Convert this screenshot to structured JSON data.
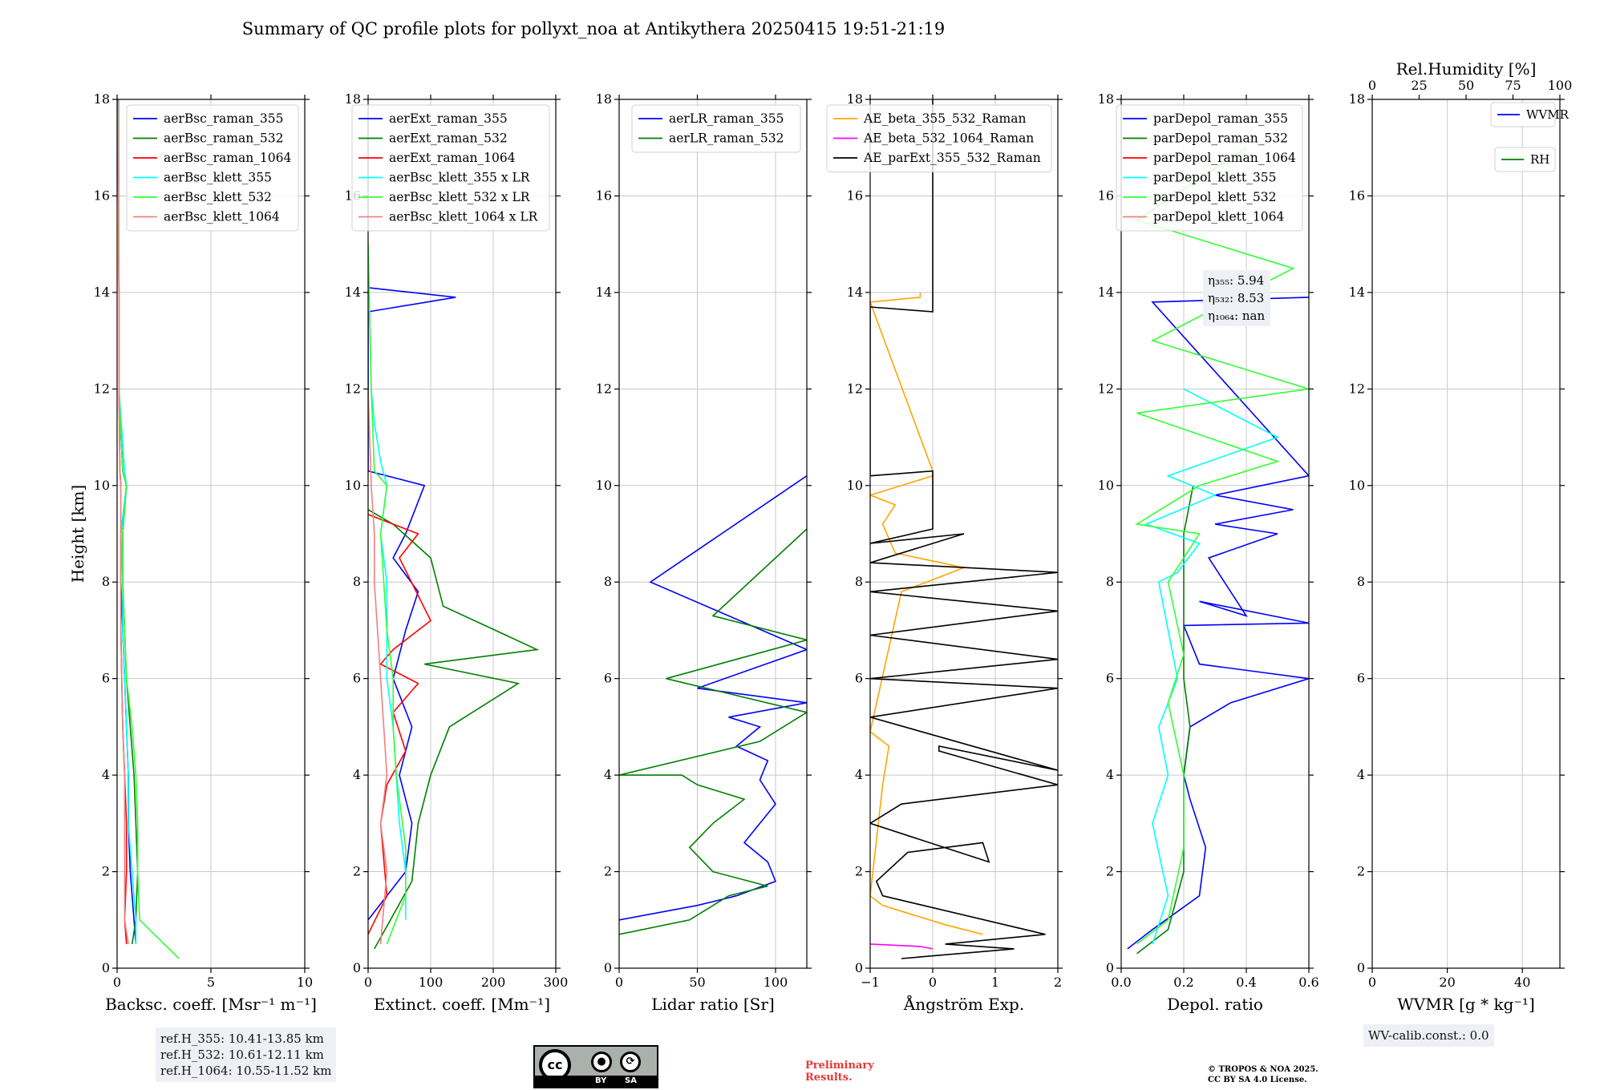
{
  "title": "Summary of QC profile plots for pollyxt_noa at Antikythera 20250415 19:51-21:19",
  "chart_data": [
    {
      "type": "line",
      "id": "bsc",
      "xlabel": "Backsc. coeff. [Msr⁻¹ m⁻¹]",
      "ylabel": "Height [km]",
      "xlim": [
        0,
        10
      ],
      "ylim": [
        0,
        18
      ],
      "xticks": [
        0,
        5,
        10
      ],
      "yticks": [
        0,
        2,
        4,
        6,
        8,
        10,
        12,
        14,
        16,
        18
      ],
      "grid": true,
      "legend": "top-right",
      "series": [
        {
          "name": "aerBsc_raman_355",
          "color": "#0000ff",
          "x": [
            1.0,
            0.9,
            0.7,
            0.6,
            0.6,
            0.5,
            0.4,
            0.3,
            0.2,
            0.2,
            0.5,
            0.3,
            0.1,
            0.1,
            0.05
          ],
          "y": [
            0.5,
            1.0,
            2.0,
            3.0,
            4.0,
            5.0,
            6.0,
            7.0,
            8.0,
            9.0,
            10.0,
            10.3,
            12.0,
            14.0,
            18.0
          ]
        },
        {
          "name": "aerBsc_raman_532",
          "color": "#008000",
          "x": [
            0.8,
            1.0,
            1.1,
            1.0,
            0.9,
            0.7,
            0.5,
            0.4,
            0.3,
            0.3,
            0.5,
            0.3,
            0.1,
            0.1,
            0.05
          ],
          "y": [
            0.5,
            1.0,
            2.0,
            3.0,
            4.0,
            5.0,
            6.0,
            7.0,
            8.0,
            9.0,
            10.0,
            10.3,
            12.0,
            14.0,
            18.0
          ]
        },
        {
          "name": "aerBsc_raman_1064",
          "color": "#ff0000",
          "x": [
            0.5,
            0.4,
            0.5,
            0.5,
            0.4,
            0.3,
            0.25,
            0.2,
            0.2,
            0.2,
            0.2,
            0.15,
            0.1,
            0.1,
            0.05
          ],
          "y": [
            0.5,
            1.0,
            2.0,
            3.0,
            4.0,
            5.0,
            6.0,
            7.0,
            8.0,
            9.0,
            10.0,
            10.3,
            12.0,
            14.0,
            18.0
          ]
        },
        {
          "name": "aerBsc_klett_355",
          "color": "#00ffff",
          "x": [
            1.0,
            1.0,
            0.8,
            0.6,
            0.6,
            0.5,
            0.4,
            0.3,
            0.3,
            0.2,
            0.5,
            0.4,
            0.1,
            0.1,
            0.1
          ],
          "y": [
            0.5,
            1.0,
            2.0,
            3.0,
            4.0,
            5.0,
            6.0,
            7.0,
            8.0,
            9.0,
            10.0,
            10.3,
            12.0,
            14.0,
            18.0
          ]
        },
        {
          "name": "aerBsc_klett_532",
          "color": "#32ff32",
          "x": [
            3.3,
            1.2,
            1.1,
            1.1,
            1.0,
            0.8,
            0.5,
            0.4,
            0.3,
            0.3,
            0.5,
            0.3,
            0.1,
            0.1,
            0.05
          ],
          "y": [
            0.2,
            1.0,
            2.0,
            3.0,
            4.0,
            5.0,
            6.0,
            7.0,
            8.0,
            9.0,
            10.0,
            10.3,
            12.0,
            14.0,
            18.0
          ]
        },
        {
          "name": "aerBsc_klett_1064",
          "color": "#f08080",
          "x": [
            0.6,
            0.4,
            0.4,
            0.4,
            0.4,
            0.3,
            0.25,
            0.2,
            0.2,
            0.2,
            0.2,
            0.15,
            0.1,
            0.1,
            0.05
          ],
          "y": [
            0.5,
            1.0,
            2.0,
            3.0,
            4.0,
            5.0,
            6.0,
            7.0,
            8.0,
            9.0,
            10.0,
            10.3,
            12.0,
            14.0,
            18.0
          ]
        }
      ]
    },
    {
      "type": "line",
      "id": "ext",
      "xlabel": "Extinct. coeff. [Mm⁻¹]",
      "xlim": [
        0,
        300
      ],
      "ylim": [
        0,
        18
      ],
      "xticks": [
        0,
        100,
        200,
        300
      ],
      "yticks": [
        0,
        2,
        4,
        6,
        8,
        10,
        12,
        14,
        16,
        18
      ],
      "grid": true,
      "legend": "top-right",
      "series": [
        {
          "name": "aerExt_raman_355",
          "color": "#0000ff",
          "x": [
            0,
            60,
            70,
            50,
            70,
            40,
            60,
            80,
            40,
            60,
            90,
            0,
            0,
            140,
            0
          ],
          "y": [
            1.0,
            2.0,
            3.0,
            4.0,
            5.0,
            6.0,
            7.0,
            7.8,
            8.5,
            9.0,
            10.0,
            10.3,
            13.6,
            13.9,
            14.1
          ]
        },
        {
          "name": "aerExt_raman_532",
          "color": "#008000",
          "x": [
            10,
            70,
            80,
            100,
            130,
            240,
            90,
            270,
            120,
            100,
            40,
            0
          ],
          "y": [
            0.4,
            1.8,
            3.0,
            4.0,
            5.0,
            5.9,
            6.3,
            6.6,
            7.5,
            8.5,
            9.2,
            9.5
          ]
        },
        {
          "name": "aerExt_raman_1064",
          "color": "#ff0000",
          "x": [
            0,
            30,
            20,
            30,
            60,
            40,
            80,
            20,
            40,
            100,
            50,
            80,
            0
          ],
          "y": [
            0.7,
            1.5,
            3.0,
            3.8,
            4.5,
            5.3,
            5.9,
            6.3,
            6.6,
            7.2,
            8.5,
            9.0,
            9.4
          ]
        },
        {
          "name": "aerBsc_klett_355 x LR",
          "color": "#00ffff",
          "x": [
            60,
            60,
            50,
            45,
            40,
            30,
            30,
            30,
            20,
            30,
            20,
            10,
            5,
            0
          ],
          "y": [
            1.0,
            2.0,
            3.0,
            4.0,
            5.0,
            6.0,
            7.0,
            8.0,
            9.0,
            10.0,
            10.5,
            11.3,
            12.0,
            15.0
          ]
        },
        {
          "name": "aerBsc_klett_532 x LR",
          "color": "#32ff32",
          "x": [
            30,
            60,
            60,
            45,
            40,
            40,
            30,
            25,
            20,
            30,
            10,
            5,
            0
          ],
          "y": [
            0.5,
            1.5,
            2.5,
            4.0,
            5.0,
            6.0,
            7.0,
            8.0,
            9.0,
            10.0,
            10.3,
            12.0,
            15.0
          ]
        },
        {
          "name": "aerBsc_klett_1064 x LR",
          "color": "#f08080",
          "x": [
            20,
            30,
            20,
            30,
            25,
            20,
            15,
            10,
            10,
            5,
            0
          ],
          "y": [
            0.5,
            2.0,
            3.0,
            4.0,
            5.0,
            6.0,
            7.0,
            8.0,
            9.0,
            10.0,
            12.0
          ]
        }
      ]
    },
    {
      "type": "line",
      "id": "lr",
      "xlabel": "Lidar ratio [Sr]",
      "xlim": [
        0,
        120
      ],
      "ylim": [
        0,
        18
      ],
      "xticks": [
        0,
        50,
        100
      ],
      "yticks": [
        0,
        2,
        4,
        6,
        8,
        10,
        12,
        14,
        16,
        18
      ],
      "grid": true,
      "legend": "top-right",
      "series": [
        {
          "name": "aerLR_raman_355",
          "color": "#0000ff",
          "x": [
            0,
            50,
            75,
            100,
            95,
            80,
            90,
            100,
            90,
            95,
            75,
            90,
            70,
            120,
            50,
            120,
            20,
            120
          ],
          "y": [
            1.0,
            1.3,
            1.5,
            1.8,
            2.2,
            2.6,
            3.0,
            3.4,
            3.9,
            4.3,
            4.6,
            5.0,
            5.2,
            5.5,
            5.8,
            6.6,
            8.0,
            10.2
          ]
        },
        {
          "name": "aerLR_raman_532",
          "color": "#008000",
          "x": [
            0,
            45,
            70,
            95,
            60,
            45,
            60,
            80,
            50,
            40,
            0,
            90,
            120,
            30,
            120,
            60,
            120
          ],
          "y": [
            0.7,
            1.0,
            1.5,
            1.7,
            2.0,
            2.5,
            3.0,
            3.5,
            3.8,
            4.0,
            4.0,
            4.7,
            5.3,
            6.0,
            6.8,
            7.3,
            9.1
          ]
        }
      ]
    },
    {
      "type": "line",
      "id": "ae",
      "xlabel": "Ångström Exp.",
      "xlim": [
        -1,
        2
      ],
      "ylim": [
        0,
        18
      ],
      "xticks": [
        -1,
        0,
        1,
        2
      ],
      "yticks": [
        0,
        2,
        4,
        6,
        8,
        10,
        12,
        14,
        16,
        18
      ],
      "grid": true,
      "legend": "top-right",
      "series": [
        {
          "name": "AE_beta_355_532_Raman",
          "color": "#ffa500",
          "x": [
            0.8,
            0.2,
            -0.3,
            -0.8,
            -1.0,
            -0.8,
            -0.7,
            -1.0,
            -0.5,
            0.5,
            -0.6,
            -0.8,
            -0.6,
            -1.0,
            0,
            0,
            -1.0,
            -0.2,
            -0.2
          ],
          "y": [
            0.7,
            0.9,
            1.1,
            1.3,
            1.5,
            3.8,
            4.6,
            4.9,
            7.8,
            8.3,
            8.6,
            9.2,
            9.6,
            9.8,
            10.2,
            10.3,
            13.8,
            13.9,
            14.0
          ]
        },
        {
          "name": "AE_beta_532_1064_Raman",
          "color": "#ff00ff",
          "x": [
            -1.0,
            -0.2,
            0
          ],
          "y": [
            0.5,
            0.45,
            0.4
          ]
        },
        {
          "name": "AE_parExt_355_532_Raman",
          "color": "#000000",
          "x": [
            -0.5,
            1.3,
            0.2,
            1.8,
            -0.8,
            -0.9,
            -0.4,
            0.8,
            0.9,
            -1.0,
            -0.5,
            2.0,
            0.1,
            0.1,
            2.0,
            -1.0,
            2.0,
            -1.0,
            2.0,
            -1.0,
            2.0,
            -1.0,
            2.0,
            -1.0,
            0.5,
            -1.0,
            0.0,
            0.0,
            -1.0,
            -1.0,
            0.0,
            0.0
          ],
          "y": [
            0.2,
            0.4,
            0.5,
            0.7,
            1.5,
            1.8,
            2.4,
            2.6,
            2.2,
            3.0,
            3.4,
            3.8,
            4.5,
            4.6,
            4.1,
            5.2,
            5.8,
            6.0,
            6.4,
            6.9,
            7.4,
            7.8,
            8.2,
            8.4,
            9.0,
            8.8,
            9.1,
            10.3,
            10.2,
            13.7,
            13.6,
            18.0
          ]
        }
      ]
    },
    {
      "type": "line",
      "id": "depol",
      "xlabel": "Depol. ratio",
      "xlim": [
        0.0,
        0.6
      ],
      "ylim": [
        0,
        18
      ],
      "xticks": [
        0.0,
        0.2,
        0.4,
        0.6
      ],
      "yticks": [
        0,
        2,
        4,
        6,
        8,
        10,
        12,
        14,
        16,
        18
      ],
      "grid": true,
      "legend": "top-right",
      "series": [
        {
          "name": "parDepol_raman_355",
          "color": "#0000ff",
          "x": [
            0.02,
            0.1,
            0.25,
            0.27,
            0.22,
            0.2,
            0.22,
            0.35,
            0.6,
            0.25,
            0.2,
            0.6,
            0.25,
            0.4,
            0.28,
            0.5,
            0.3,
            0.55,
            0.3,
            0.6,
            0.1,
            0.6
          ],
          "y": [
            0.4,
            0.8,
            1.5,
            2.5,
            3.5,
            4.0,
            5.0,
            5.5,
            6.0,
            6.3,
            7.1,
            7.15,
            7.6,
            7.3,
            8.5,
            9.0,
            9.2,
            9.5,
            9.8,
            10.2,
            13.8,
            13.9
          ]
        },
        {
          "name": "parDepol_raman_532",
          "color": "#008000",
          "x": [
            0.05,
            0.15,
            0.2,
            0.2,
            0.2,
            0.22,
            0.2,
            0.2,
            0.2,
            0.2,
            0.23
          ],
          "y": [
            0.3,
            0.8,
            2.0,
            3.0,
            4.0,
            5.0,
            6.0,
            7.0,
            8.0,
            9.0,
            10.0
          ]
        },
        {
          "name": "parDepol_raman_1064",
          "color": "#ff0000",
          "x": [],
          "y": []
        },
        {
          "name": "parDepol_klett_355",
          "color": "#00ffff",
          "x": [
            0.1,
            0.15,
            0.1,
            0.15,
            0.12,
            0.18,
            0.15,
            0.12,
            0.18,
            0.25,
            0.08,
            0.3,
            0.15,
            0.5,
            0.2
          ],
          "y": [
            0.5,
            1.5,
            3.0,
            4.0,
            5.0,
            6.0,
            7.0,
            8.0,
            8.2,
            8.8,
            9.2,
            9.8,
            10.2,
            11.0,
            12.0
          ]
        },
        {
          "name": "parDepol_klett_532",
          "color": "#32ff32",
          "x": [
            0.05,
            0.15,
            0.2,
            0.2,
            0.15,
            0.2,
            0.15,
            0.25,
            0.05,
            0.25,
            0.5,
            0.05,
            0.6,
            0.1,
            0.55,
            0.05,
            0.4
          ],
          "y": [
            0.5,
            1.0,
            2.5,
            4.0,
            5.5,
            6.5,
            8.0,
            9.0,
            9.2,
            10.0,
            10.5,
            11.5,
            12.0,
            13.0,
            14.5,
            15.5,
            17.0
          ]
        },
        {
          "name": "parDepol_klett_1064",
          "color": "#f08080",
          "x": [],
          "y": []
        }
      ],
      "annotation": [
        "η₃₅₅: 5.94",
        "η₅₃₂: 8.53",
        "η₁₀₆₄: nan"
      ]
    },
    {
      "type": "line",
      "id": "wv",
      "xlabel": "WVMR [g * kg⁻¹]",
      "x2label": "Rel.Humidity [%]",
      "xlim": [
        0,
        50
      ],
      "x2lim": [
        0,
        100
      ],
      "ylim": [
        0,
        18
      ],
      "xticks": [
        0,
        20,
        40
      ],
      "x2ticks": [
        0,
        25,
        50,
        75,
        100
      ],
      "yticks": [
        0,
        2,
        4,
        6,
        8,
        10,
        12,
        14,
        16,
        18
      ],
      "grid": true,
      "series": [
        {
          "name": "WVMR",
          "color": "#0000ff",
          "x": [],
          "y": []
        },
        {
          "name": "RH",
          "color": "#008000",
          "x": [],
          "y": []
        }
      ]
    }
  ],
  "notes": {
    "ref_heights": [
      "ref.H_355: 10.41-13.85 km",
      "ref.H_532: 10.61-12.11 km",
      "ref.H_1064: 10.55-11.52 km"
    ],
    "wv_calib": "WV-calib.const.: 0.0",
    "preliminary": "Preliminary\nResults.",
    "copyright": "© TROPOS & NOA 2025.\nCC BY SA 4.0 License."
  },
  "license_badge": {
    "by": "BY",
    "sa": "SA",
    "cc": "cc"
  }
}
